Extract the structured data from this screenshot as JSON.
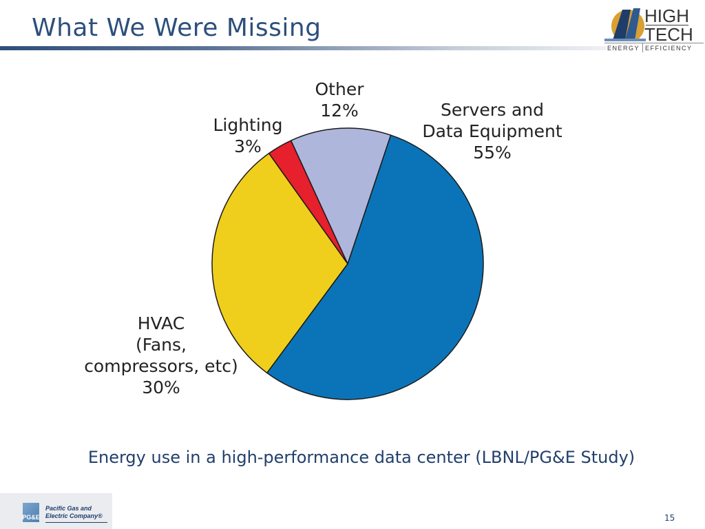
{
  "slide": {
    "title": "What We Were Missing",
    "caption": "Energy use in a high-performance data center (LBNL/PG&E Study)",
    "page_number": "15"
  },
  "logo": {
    "word_1": "HIGH",
    "word_2": "TECH",
    "sub_left": "ENERGY",
    "sub_right": "EFFICIENCY"
  },
  "footer_logo": {
    "mark": "PG&E",
    "name_line_1": "Pacific Gas and",
    "name_line_2": "Electric Company®"
  },
  "colors": {
    "title": "#2d4f7c",
    "caption": "#213f6c",
    "servers": "#0b74b8",
    "hvac": "#f0cf1c",
    "lighting": "#e6202c",
    "other": "#aeb6dc"
  },
  "chart_data": {
    "type": "pie",
    "slices": [
      {
        "key": "servers",
        "label_lines": [
          "Servers and",
          "Data Equipment",
          "55%"
        ],
        "value": 55,
        "color": "#0b74b8"
      },
      {
        "key": "hvac",
        "label_lines": [
          "HVAC",
          "(Fans,",
          "compressors, etc)",
          "30%"
        ],
        "value": 30,
        "color": "#f0cf1c"
      },
      {
        "key": "lighting",
        "label_lines": [
          "Lighting",
          "3%"
        ],
        "value": 3,
        "color": "#e6202c"
      },
      {
        "key": "other",
        "label_lines": [
          "Other",
          "12%"
        ],
        "value": 12,
        "color": "#aeb6dc"
      }
    ]
  }
}
